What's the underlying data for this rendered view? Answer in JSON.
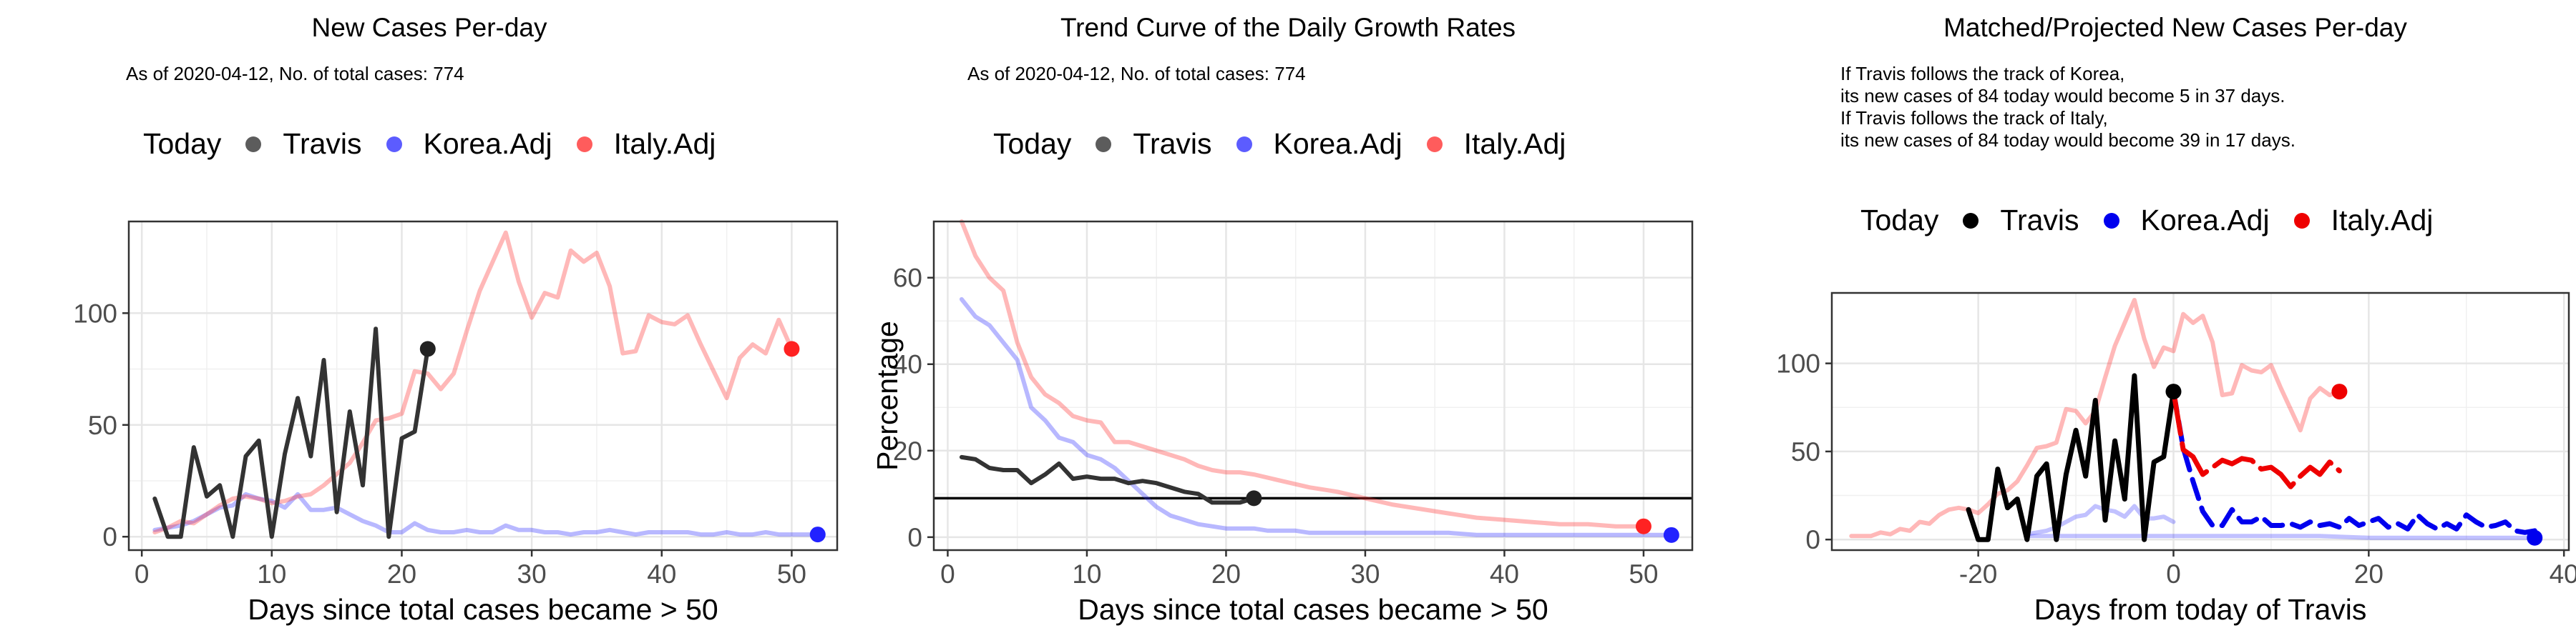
{
  "chart_data": [
    {
      "type": "line",
      "title": "New Cases Per-day",
      "subtitle": "As of 2020-04-12, No. of total cases: 774",
      "xlabel": "Days since total cases became > 50",
      "ylabel": "",
      "xlim": [
        -1,
        53.5
      ],
      "ylim": [
        -6,
        141
      ],
      "xticks": [
        0,
        10,
        20,
        30,
        40,
        50
      ],
      "yticks": [
        0,
        50,
        100
      ],
      "grid": true,
      "legend": {
        "title": "Today",
        "position": "top",
        "entries": [
          "Travis",
          "Korea.Adj",
          "Italy.Adj"
        ]
      },
      "series": [
        {
          "name": "Travis",
          "color": "#333333",
          "x": [
            1,
            2,
            3,
            4,
            5,
            6,
            7,
            8,
            9,
            10,
            11,
            12,
            13,
            14,
            15,
            16,
            17,
            18,
            19,
            20,
            21,
            22
          ],
          "y": [
            17,
            0,
            0,
            40,
            18,
            23,
            0,
            36,
            43,
            0,
            37,
            62,
            36,
            79,
            11,
            56,
            23,
            93,
            0,
            44,
            47,
            84
          ]
        },
        {
          "name": "Korea.Adj",
          "color": "#3333ff",
          "x": [
            1,
            2,
            3,
            4,
            5,
            6,
            7,
            8,
            9,
            10,
            11,
            12,
            13,
            14,
            15,
            16,
            17,
            18,
            19,
            20,
            21,
            22,
            23,
            24,
            25,
            26,
            27,
            28,
            29,
            30,
            31,
            32,
            33,
            34,
            35,
            36,
            37,
            38,
            39,
            40,
            41,
            42,
            43,
            44,
            45,
            46,
            47,
            48,
            49,
            50,
            51,
            52
          ],
          "y": [
            3,
            4,
            5,
            7,
            10,
            13,
            14,
            19,
            17,
            16,
            13,
            19,
            12,
            12,
            13,
            10,
            7,
            5,
            2,
            2,
            6,
            3,
            2,
            2,
            3,
            2,
            2,
            5,
            3,
            3,
            2,
            2,
            1,
            2,
            2,
            3,
            2,
            1,
            2,
            2,
            2,
            2,
            1,
            1,
            2,
            1,
            1,
            2,
            1,
            1,
            1,
            1
          ]
        },
        {
          "name": "Italy.Adj",
          "color": "#ff3333",
          "x": [
            1,
            2,
            3,
            4,
            5,
            6,
            7,
            8,
            9,
            10,
            11,
            12,
            13,
            14,
            15,
            16,
            17,
            18,
            19,
            20,
            21,
            22,
            23,
            24,
            25,
            26,
            27,
            28,
            29,
            30,
            31,
            32,
            33,
            34,
            35,
            36,
            37,
            38,
            39,
            40,
            41,
            42,
            43,
            44,
            45,
            46,
            47,
            48,
            49,
            50
          ],
          "y": [
            2,
            4,
            7,
            6,
            10,
            14,
            17,
            18,
            17,
            15,
            16,
            18,
            19,
            23,
            28,
            33,
            42,
            52,
            53,
            55,
            74,
            73,
            66,
            73,
            92,
            110,
            123,
            136,
            114,
            98,
            109,
            107,
            128,
            123,
            127,
            112,
            82,
            83,
            99,
            96,
            95,
            99,
            86,
            74,
            62,
            80,
            86,
            82,
            97,
            84
          ]
        }
      ],
      "today_points": [
        {
          "name": "Travis",
          "x": 22,
          "y": 84
        },
        {
          "name": "Korea.Adj",
          "x": 52,
          "y": 1
        },
        {
          "name": "Italy.Adj",
          "x": 50,
          "y": 84
        }
      ]
    },
    {
      "type": "line",
      "title": "Trend Curve of the Daily Growth Rates",
      "subtitle": "As of 2020-04-12, No. of total cases: 774",
      "xlabel": "Days since total cases became > 50",
      "ylabel": "Percentage",
      "xlim": [
        -1,
        53.5
      ],
      "ylim": [
        -3,
        73
      ],
      "xticks": [
        0,
        10,
        20,
        30,
        40,
        50
      ],
      "yticks": [
        0,
        20,
        40,
        60
      ],
      "grid": true,
      "hline": 9,
      "legend": {
        "title": "Today",
        "position": "top",
        "entries": [
          "Travis",
          "Korea.Adj",
          "Italy.Adj"
        ]
      },
      "series": [
        {
          "name": "Travis",
          "color": "#333333",
          "x": [
            1,
            2,
            3,
            4,
            5,
            6,
            7,
            8,
            9,
            10,
            11,
            12,
            13,
            14,
            15,
            16,
            17,
            18,
            19,
            20,
            21,
            22
          ],
          "y": [
            18.5,
            18,
            16,
            15.5,
            15.5,
            12.5,
            14.5,
            17,
            13.5,
            14,
            13.5,
            13.5,
            12.5,
            13,
            12.5,
            11.5,
            10.5,
            10,
            8,
            8,
            8,
            9
          ]
        },
        {
          "name": "Korea.Adj",
          "color": "#3333ff",
          "x": [
            1,
            2,
            3,
            4,
            5,
            6,
            7,
            8,
            9,
            10,
            11,
            12,
            13,
            14,
            15,
            16,
            17,
            18,
            19,
            20,
            21,
            22,
            23,
            24,
            25,
            26,
            28,
            30,
            32,
            34,
            36,
            38,
            40,
            42,
            44,
            46,
            48,
            50,
            52
          ],
          "y": [
            55,
            51,
            49,
            45,
            41,
            30,
            27,
            23,
            22,
            19,
            18,
            16,
            13,
            10,
            7,
            5,
            4,
            3,
            2.5,
            2,
            2,
            2,
            1.5,
            1.5,
            1.5,
            1,
            1,
            1,
            1,
            1,
            1,
            0.5,
            0.5,
            0.5,
            0.5,
            0.5,
            0.5,
            0.5,
            0.5
          ]
        },
        {
          "name": "Italy.Adj",
          "color": "#ff3333",
          "x": [
            1,
            2,
            3,
            4,
            5,
            6,
            7,
            8,
            9,
            10,
            11,
            12,
            13,
            14,
            15,
            16,
            17,
            18,
            19,
            20,
            21,
            22,
            24,
            26,
            28,
            30,
            32,
            34,
            36,
            38,
            40,
            42,
            44,
            46,
            48,
            50
          ],
          "y": [
            73,
            65,
            60,
            57,
            45,
            37,
            33,
            31,
            28,
            27,
            26.5,
            22,
            22,
            21,
            20,
            19,
            18,
            16.5,
            15.5,
            15,
            15,
            14.5,
            13,
            11.5,
            10.5,
            9,
            7.5,
            6.5,
            5.5,
            4.5,
            4,
            3.5,
            3,
            3,
            2.5,
            2.5
          ]
        }
      ],
      "today_points": [
        {
          "name": "Travis",
          "x": 22,
          "y": 9
        },
        {
          "name": "Korea.Adj",
          "x": 52,
          "y": 0.5
        },
        {
          "name": "Italy.Adj",
          "x": 50,
          "y": 2.5
        }
      ]
    },
    {
      "type": "line",
      "title": "Matched/Projected New Cases Per-day",
      "annotations": [
        "If Travis follows the track of Korea,",
        "its new cases of 84 today would become 5 in 37 days.",
        "If Travis follows the track of Italy,",
        "its new cases of 84 today would become 39 in 17 days."
      ],
      "xlabel": "Days from today of Travis",
      "ylabel": "",
      "xlim": [
        -35,
        40.5
      ],
      "ylim": [
        -6,
        140
      ],
      "xticks": [
        -20,
        0,
        20,
        40
      ],
      "yticks": [
        0,
        50,
        100
      ],
      "grid": true,
      "legend": {
        "title": "Today",
        "position": "top",
        "entries": [
          "Travis",
          "Korea.Adj",
          "Italy.Adj"
        ]
      },
      "series": [
        {
          "name": "Travis",
          "color": "#000000",
          "x": [
            -21,
            -20,
            -19,
            -18,
            -17,
            -16,
            -15,
            -14,
            -13,
            -12,
            -11,
            -10,
            -9,
            -8,
            -7,
            -6,
            -5,
            -4,
            -3,
            -2,
            -1,
            0
          ],
          "y": [
            17,
            0,
            0,
            40,
            18,
            23,
            0,
            36,
            43,
            0,
            37,
            62,
            36,
            79,
            11,
            56,
            23,
            93,
            0,
            44,
            47,
            84
          ]
        },
        {
          "name": "Korea.Adj (matched)",
          "color": "#3333ff",
          "x": [
            -15,
            -14,
            -13,
            -12,
            -11,
            -10,
            -9,
            -8,
            -7,
            -6,
            -5,
            -4,
            -3,
            -2,
            -1,
            0
          ],
          "y": [
            3,
            4,
            5,
            7,
            10,
            13,
            14,
            19,
            17,
            16,
            13,
            19,
            12,
            12,
            13,
            10
          ]
        },
        {
          "name": "Korea.Adj (projected)",
          "color": "#0000ee",
          "x": [
            0,
            1,
            2,
            3,
            4,
            5,
            6,
            7,
            8,
            9,
            10,
            11,
            12,
            13,
            14,
            15,
            16,
            17,
            18,
            19,
            20,
            21,
            22,
            23,
            24,
            25,
            26,
            27,
            28,
            29,
            30,
            31,
            32,
            33,
            34,
            35,
            36,
            37
          ],
          "y": [
            84,
            52,
            33,
            16,
            8,
            8,
            17,
            10,
            10,
            13,
            8,
            8,
            9,
            7,
            10,
            8,
            9,
            7,
            12,
            8,
            10,
            12,
            7,
            9,
            6,
            14,
            9,
            6,
            9,
            6,
            14,
            10,
            7,
            8,
            10,
            5,
            4,
            5
          ]
        },
        {
          "name": "Korea.Adj (after)",
          "color": "#3333ff",
          "x": [
            -15,
            -10,
            -5,
            0,
            5,
            10,
            15,
            20,
            25,
            30,
            35,
            37
          ],
          "y": [
            2,
            2,
            2,
            2,
            2,
            2,
            2,
            1,
            1,
            1,
            1,
            1
          ]
        },
        {
          "name": "Italy.Adj (matched)",
          "color": "#ff3333",
          "x": [
            -33,
            -32,
            -31,
            -30,
            -29,
            -28,
            -27,
            -26,
            -25,
            -24,
            -23,
            -22,
            -21,
            -20,
            -19,
            -18,
            -17,
            -16,
            -15,
            -14,
            -13,
            -12,
            -11,
            -10,
            -9,
            -8,
            -7,
            -6,
            -5,
            -4,
            -3,
            -2,
            -1,
            0,
            1,
            2,
            3,
            4,
            5,
            6,
            7,
            8,
            9,
            10,
            11,
            12,
            13,
            14,
            15,
            16,
            17
          ],
          "y": [
            2,
            2,
            2,
            4,
            3,
            6,
            5,
            10,
            9,
            14,
            17,
            18,
            17,
            15,
            20,
            26,
            28,
            33,
            42,
            52,
            53,
            55,
            74,
            73,
            66,
            73,
            92,
            110,
            123,
            136,
            114,
            98,
            109,
            107,
            128,
            123,
            127,
            112,
            82,
            83,
            99,
            96,
            95,
            99,
            86,
            74,
            62,
            80,
            86,
            82,
            84
          ]
        },
        {
          "name": "Italy.Adj (projected)",
          "color": "#ee0000",
          "x": [
            0,
            1,
            2,
            3,
            4,
            5,
            6,
            7,
            8,
            9,
            10,
            11,
            12,
            13,
            14,
            15,
            16,
            17
          ],
          "y": [
            84,
            51,
            47,
            37,
            41,
            45,
            43,
            46,
            45,
            40,
            41,
            37,
            30,
            36,
            41,
            37,
            44,
            39
          ]
        }
      ],
      "today_points": [
        {
          "name": "Travis",
          "x": 0,
          "y": 84
        },
        {
          "name": "Korea.Adj",
          "x": 37,
          "y": 1
        },
        {
          "name": "Italy.Adj",
          "x": 17,
          "y": 84
        }
      ]
    }
  ]
}
